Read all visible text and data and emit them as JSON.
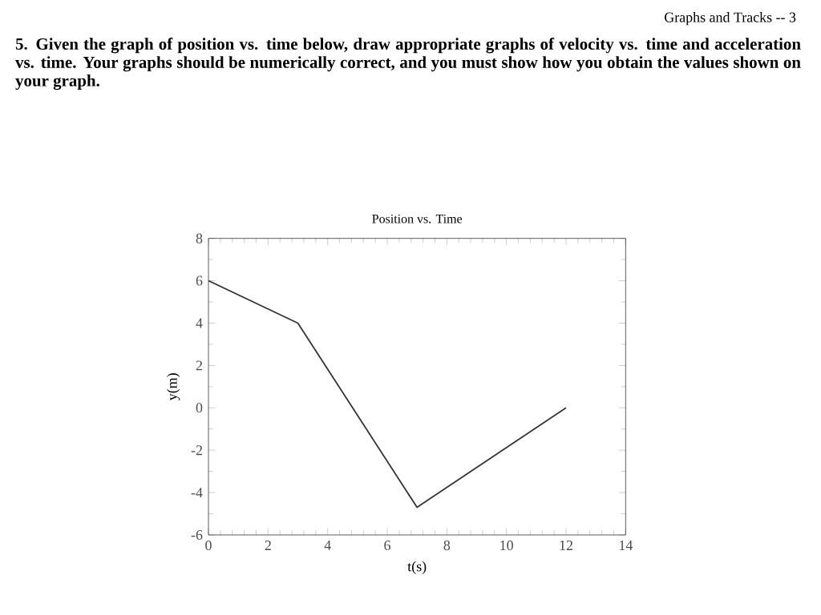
{
  "chart_data": {
    "type": "line",
    "title": "Position vs. Time",
    "xlabel": "t(s)",
    "ylabel": "y(m)",
    "x": [
      0,
      3,
      7,
      12
    ],
    "values": [
      6,
      4,
      -4.7,
      0
    ],
    "color": "#333333",
    "xlim": [
      0,
      14
    ],
    "xticks": [
      0,
      2,
      4,
      6,
      8,
      10,
      12,
      14
    ],
    "ylim": [
      -6,
      8
    ],
    "yticks": [
      -6,
      -4,
      -2,
      0,
      2,
      4,
      6,
      8
    ],
    "grid": false,
    "marker": "none",
    "line_style": "solid",
    "annotations": [
      "Graphs and Tracks -- 3",
      "5. Given the graph of position vs. time below, draw appropriate graphs of velocity vs. time and acceleration vs. time. Your graphs should be numerically correct, and you must show how you obtain the values shown on your graph."
    ]
  }
}
